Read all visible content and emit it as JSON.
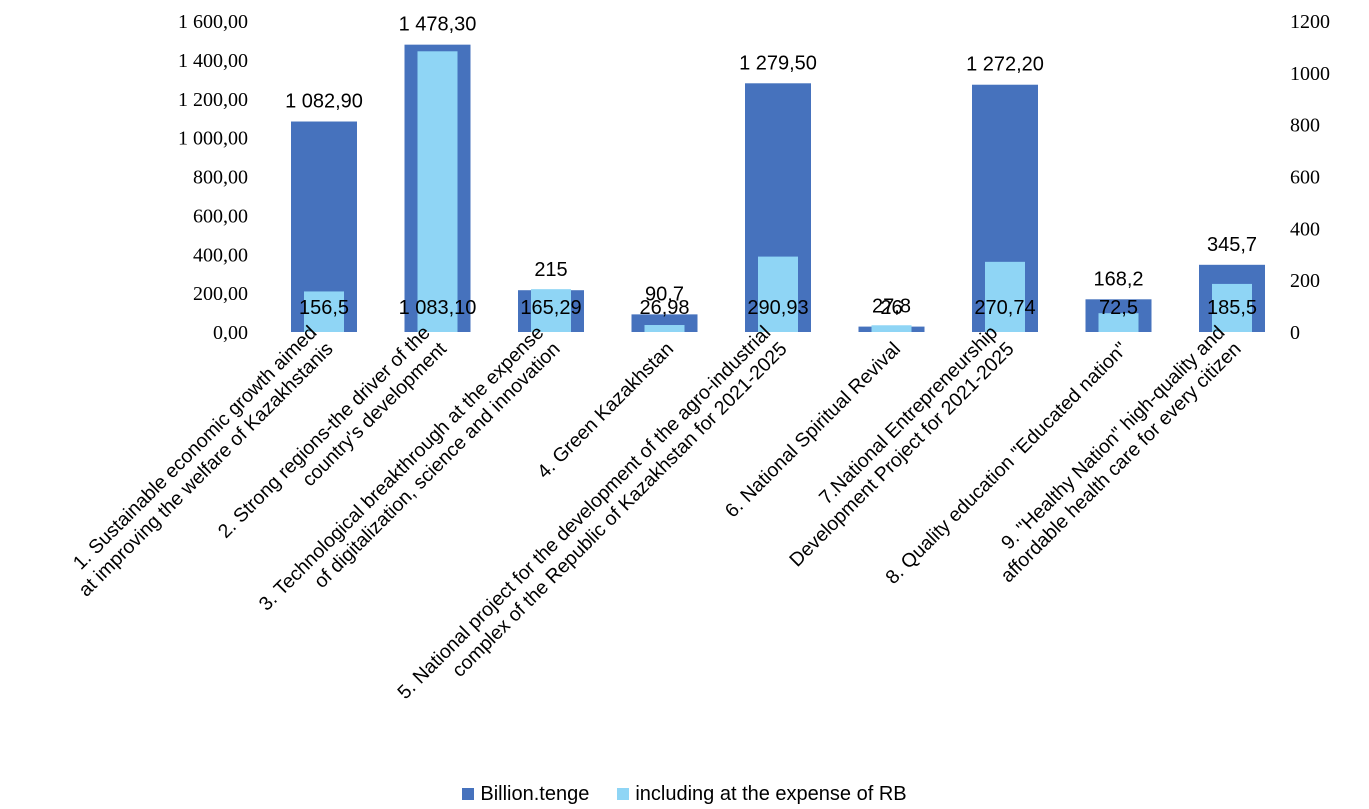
{
  "chart_data": {
    "type": "bar",
    "categories": [
      [
        "1. Sustainable economic growth aimed",
        "at improving the welfare of Kazakhstanis"
      ],
      [
        "2. Strong regions-the driver of the",
        "country's development"
      ],
      [
        "3. Technological breakthrough at the expense",
        "of digitalization, science and innovation"
      ],
      [
        "4. Green Kazakhstan"
      ],
      [
        "5. National project for the development of the agro-industrial",
        "complex of the Republic of Kazakhstan for 2021-2025"
      ],
      [
        "6. National Spiritual Revival"
      ],
      [
        "7.National Entrepreneurship",
        "Development Project for 2021-2025"
      ],
      [
        "8. Quality education \"Educated nation\""
      ],
      [
        "9. \"Healthy Nation\" high-quality and",
        "affordable health care for every citizen"
      ]
    ],
    "series": [
      {
        "name": "Billion.tenge",
        "axis": "left",
        "color": "#4672BD",
        "values": [
          1082.9,
          1478.3,
          215,
          90.7,
          1279.5,
          27.8,
          1272.2,
          168.2,
          345.7
        ],
        "labels": [
          "1 082,90",
          "1 478,30",
          "215",
          "90,7",
          "1 279,50",
          "27,8",
          "1 272,20",
          "168,2",
          "345,7"
        ]
      },
      {
        "name": "including at the expense of RB",
        "axis": "right",
        "color": "#8FD5F5",
        "values": [
          156.5,
          1083.1,
          165.29,
          26.98,
          290.93,
          26,
          270.74,
          72.5,
          185.5
        ],
        "labels": [
          "156,5",
          "1 083,10",
          "165,29",
          "26,98",
          "290,93",
          "26",
          "270,74",
          "72,5",
          "185,5"
        ]
      }
    ],
    "y_left": {
      "min": 0,
      "max": 1600,
      "ticks": [
        0,
        200,
        400,
        600,
        800,
        1000,
        1200,
        1400,
        1600
      ],
      "tick_labels": [
        "0,00",
        "200,00",
        "400,00",
        "600,00",
        "800,00",
        "1 000,00",
        "1 200,00",
        "1 400,00",
        "1 600,00"
      ]
    },
    "y_right": {
      "min": 0,
      "max": 1200,
      "ticks": [
        0,
        200,
        400,
        600,
        800,
        1000,
        1200
      ],
      "tick_labels": [
        "0",
        "200",
        "400",
        "600",
        "800",
        "1000",
        "1200"
      ]
    },
    "grid": false,
    "legend_position": "bottom"
  }
}
